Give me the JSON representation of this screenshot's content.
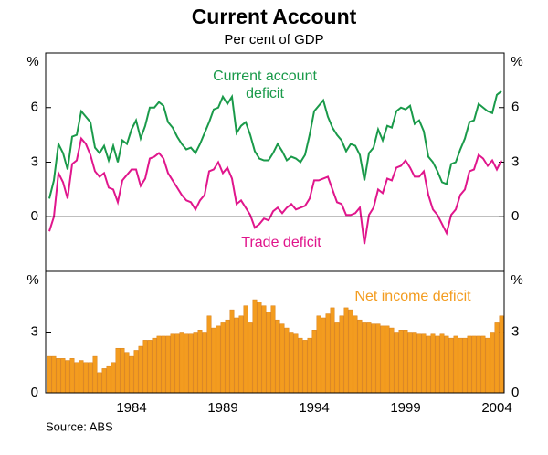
{
  "title": "Current Account",
  "subtitle": "Per cent of GDP",
  "source": "Source: ABS",
  "chart_data": [
    {
      "type": "line",
      "yunit": "%",
      "x": [
        1979.5,
        1979.75,
        1980,
        1980.25,
        1980.5,
        1980.75,
        1981,
        1981.25,
        1981.5,
        1981.75,
        1982,
        1982.25,
        1982.5,
        1982.75,
        1983,
        1983.25,
        1983.5,
        1983.75,
        1984,
        1984.25,
        1984.5,
        1984.75,
        1985,
        1985.25,
        1985.5,
        1985.75,
        1986,
        1986.25,
        1986.5,
        1986.75,
        1987,
        1987.25,
        1987.5,
        1987.75,
        1988,
        1988.25,
        1988.5,
        1988.75,
        1989,
        1989.25,
        1989.5,
        1989.75,
        1990,
        1990.25,
        1990.5,
        1990.75,
        1991,
        1991.25,
        1991.5,
        1991.75,
        1992,
        1992.25,
        1992.5,
        1992.75,
        1993,
        1993.25,
        1993.5,
        1993.75,
        1994,
        1994.25,
        1994.5,
        1994.75,
        1995,
        1995.25,
        1995.5,
        1995.75,
        1996,
        1996.25,
        1996.5,
        1996.75,
        1997,
        1997.25,
        1997.5,
        1997.75,
        1998,
        1998.25,
        1998.5,
        1998.75,
        1999,
        1999.25,
        1999.5,
        1999.75,
        2000,
        2000.25,
        2000.5,
        2000.75,
        2001,
        2001.25,
        2001.5,
        2001.75,
        2002,
        2002.25,
        2002.5,
        2002.75,
        2003,
        2003.25,
        2003.5,
        2003.75,
        2004,
        2004.25
      ],
      "series": [
        {
          "name": "Current account deficit",
          "color": "#1a9a4a",
          "values": [
            1.0,
            2.0,
            4.0,
            3.5,
            2.6,
            4.4,
            4.5,
            5.8,
            5.5,
            5.2,
            3.8,
            3.5,
            3.9,
            3.1,
            3.9,
            3.0,
            4.2,
            4.0,
            4.8,
            5.3,
            4.3,
            5.0,
            6.0,
            6.0,
            6.3,
            6.1,
            5.2,
            4.9,
            4.4,
            4.0,
            3.7,
            3.8,
            3.5,
            4.0,
            4.6,
            5.2,
            5.9,
            6.0,
            6.6,
            6.2,
            6.6,
            4.6,
            5.0,
            5.2,
            4.5,
            3.6,
            3.2,
            3.1,
            3.1,
            3.5,
            4.0,
            3.6,
            3.1,
            3.3,
            3.2,
            3.0,
            3.4,
            4.5,
            5.8,
            6.1,
            6.4,
            5.5,
            4.9,
            4.5,
            4.2,
            3.6,
            4.0,
            3.9,
            3.4,
            2.0,
            3.5,
            3.8,
            4.8,
            4.2,
            5.0,
            4.9,
            5.8,
            6.0,
            5.9,
            6.1,
            5.1,
            5.3,
            4.7,
            3.3,
            3.0,
            2.5,
            1.9,
            1.8,
            2.9,
            3.0,
            3.7,
            4.3,
            5.2,
            5.3,
            6.2,
            6.0,
            5.8,
            5.7,
            6.7,
            6.9
          ]
        },
        {
          "name": "Trade deficit",
          "color": "#e0168c",
          "values": [
            -0.8,
            0.0,
            2.4,
            1.9,
            1.0,
            2.9,
            3.1,
            4.3,
            4.0,
            3.4,
            2.5,
            2.2,
            2.4,
            1.6,
            1.5,
            0.8,
            2.0,
            2.3,
            2.6,
            2.6,
            1.7,
            2.1,
            3.2,
            3.3,
            3.5,
            3.2,
            2.4,
            2.0,
            1.6,
            1.2,
            0.9,
            0.8,
            0.4,
            0.9,
            1.2,
            2.5,
            2.6,
            3.0,
            2.4,
            2.7,
            2.1,
            0.7,
            0.9,
            0.5,
            0.1,
            -0.6,
            -0.4,
            -0.1,
            -0.2,
            0.3,
            0.5,
            0.2,
            0.5,
            0.7,
            0.4,
            0.5,
            0.6,
            1.0,
            2.0,
            2.0,
            2.1,
            2.2,
            1.5,
            0.8,
            0.7,
            0.1,
            0.1,
            0.2,
            0.5,
            -1.5,
            0.1,
            0.5,
            1.5,
            1.3,
            2.1,
            2.0,
            2.7,
            2.8,
            3.1,
            2.7,
            2.2,
            2.2,
            2.5,
            1.2,
            0.4,
            0.1,
            -0.4,
            -0.9,
            0.1,
            0.4,
            1.2,
            1.5,
            2.5,
            2.6,
            3.4,
            3.2,
            2.8,
            3.1,
            2.6,
            3.1
          ]
        }
      ],
      "xlim": [
        1979.3,
        2004.4
      ],
      "ylim": [
        -3,
        9
      ],
      "yticks": [
        0,
        3,
        6
      ],
      "zero_line": true
    },
    {
      "type": "bar",
      "yunit": "%",
      "x": [
        1979.5,
        1979.75,
        1980,
        1980.25,
        1980.5,
        1980.75,
        1981,
        1981.25,
        1981.5,
        1981.75,
        1982,
        1982.25,
        1982.5,
        1982.75,
        1983,
        1983.25,
        1983.5,
        1983.75,
        1984,
        1984.25,
        1984.5,
        1984.75,
        1985,
        1985.25,
        1985.5,
        1985.75,
        1986,
        1986.25,
        1986.5,
        1986.75,
        1987,
        1987.25,
        1987.5,
        1987.75,
        1988,
        1988.25,
        1988.5,
        1988.75,
        1989,
        1989.25,
        1989.5,
        1989.75,
        1990,
        1990.25,
        1990.5,
        1990.75,
        1991,
        1991.25,
        1991.5,
        1991.75,
        1992,
        1992.25,
        1992.5,
        1992.75,
        1993,
        1993.25,
        1993.5,
        1993.75,
        1994,
        1994.25,
        1994.5,
        1994.75,
        1995,
        1995.25,
        1995.5,
        1995.75,
        1996,
        1996.25,
        1996.5,
        1996.75,
        1997,
        1997.25,
        1997.5,
        1997.75,
        1998,
        1998.25,
        1998.5,
        1998.75,
        1999,
        1999.25,
        1999.5,
        1999.75,
        2000,
        2000.25,
        2000.5,
        2000.75,
        2001,
        2001.25,
        2001.5,
        2001.75,
        2002,
        2002.25,
        2002.5,
        2002.75,
        2003,
        2003.25,
        2003.5,
        2003.75,
        2004,
        2004.25
      ],
      "series": [
        {
          "name": "Net income deficit",
          "color": "#f39c1f",
          "values": [
            1.8,
            1.8,
            1.7,
            1.7,
            1.6,
            1.7,
            1.5,
            1.6,
            1.5,
            1.5,
            1.8,
            1.0,
            1.2,
            1.3,
            1.5,
            2.2,
            2.2,
            2.0,
            1.8,
            2.1,
            2.3,
            2.6,
            2.6,
            2.7,
            2.8,
            2.8,
            2.8,
            2.9,
            2.9,
            3.0,
            2.9,
            2.9,
            3.0,
            3.1,
            3.0,
            3.8,
            3.2,
            3.3,
            3.5,
            3.6,
            4.1,
            3.7,
            3.8,
            4.3,
            3.5,
            4.6,
            4.5,
            4.3,
            4.0,
            4.3,
            3.6,
            3.4,
            3.2,
            3.0,
            2.9,
            2.7,
            2.6,
            2.7,
            3.1,
            3.8,
            3.7,
            3.9,
            4.2,
            3.5,
            3.8,
            4.2,
            4.1,
            3.8,
            3.6,
            3.5,
            3.5,
            3.4,
            3.4,
            3.3,
            3.3,
            3.2,
            3.0,
            3.1,
            3.1,
            3.0,
            3.0,
            2.9,
            2.9,
            2.8,
            2.9,
            2.8,
            2.9,
            2.8,
            2.7,
            2.8,
            2.7,
            2.7,
            2.8,
            2.8,
            2.8,
            2.8,
            2.7,
            3.0,
            3.5,
            3.8
          ]
        }
      ],
      "xlim": [
        1979.3,
        2004.4
      ],
      "xticks": [
        1984,
        1989,
        1994,
        1999,
        2004
      ],
      "ylim": [
        0,
        6
      ],
      "yticks": [
        0,
        3
      ]
    }
  ]
}
